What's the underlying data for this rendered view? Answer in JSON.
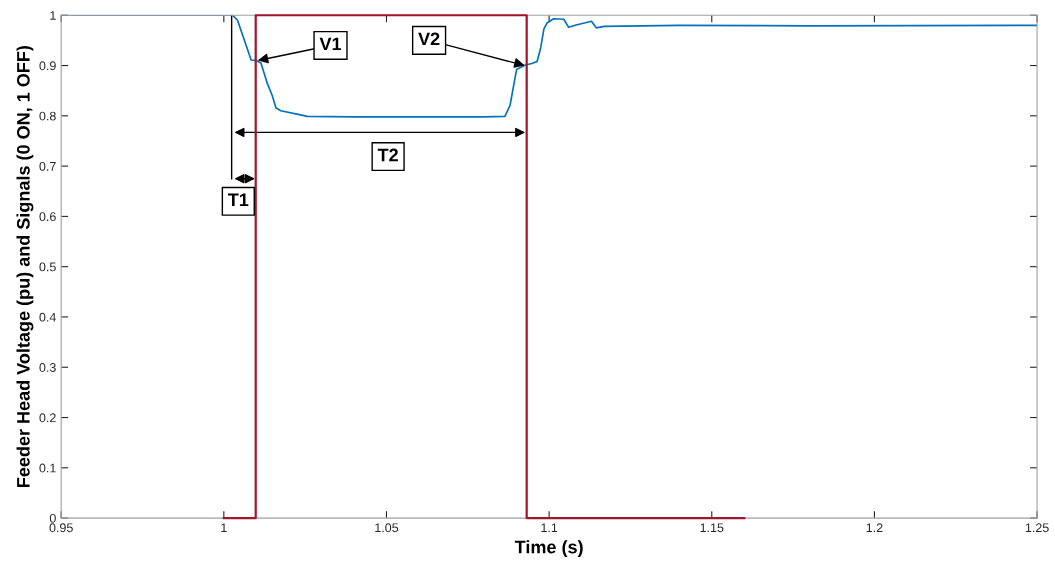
{
  "chart_data": {
    "type": "step",
    "xlabel": "Time (s)",
    "ylabel": "Feeder Head Voltage (pu) and Signals (0 ON, 1 OFF)",
    "xlim": [
      0.95,
      1.25
    ],
    "ylim": [
      0,
      1
    ],
    "xticks": [
      0.95,
      1,
      1.05,
      1.1,
      1.15,
      1.2,
      1.25
    ],
    "yticks": [
      0,
      0.1,
      0.2,
      0.3,
      0.4,
      0.5,
      0.6,
      0.7,
      0.8,
      0.9,
      1
    ],
    "grid": false,
    "series": [
      {
        "color": "#a2142f",
        "x": [
          1.0,
          1.0098,
          1.0931,
          1.16
        ],
        "values": [
          0,
          1,
          0,
          0
        ]
      },
      {
        "type": "line",
        "color": "#0072bd",
        "x": [
          0.95,
          1.0027,
          1.0042,
          1.0084,
          1.0099,
          1.0114,
          1.0134,
          1.0149,
          1.016,
          1.0175,
          1.0236,
          1.0256,
          1.04,
          1.06,
          1.08,
          1.0864,
          1.088,
          1.089,
          1.09,
          1.0927,
          1.0947,
          1.0963,
          1.0974,
          1.0984,
          1.0994,
          1.1014,
          1.1045,
          1.106,
          1.108,
          1.113,
          1.1145,
          1.117,
          1.14,
          1.18,
          1.25
        ],
        "values": [
          1.0,
          1.0,
          0.99,
          0.911,
          0.91,
          0.905,
          0.864,
          0.84,
          0.816,
          0.81,
          0.802,
          0.799,
          0.798,
          0.798,
          0.798,
          0.799,
          0.821,
          0.857,
          0.892,
          0.901,
          0.904,
          0.908,
          0.935,
          0.973,
          0.985,
          0.993,
          0.992,
          0.976,
          0.98,
          0.988,
          0.975,
          0.978,
          0.98,
          0.979,
          0.98
        ]
      }
    ],
    "annotations": [
      {
        "text": "V1",
        "x": 1.0104,
        "y": 0.91
      },
      {
        "text": "V2",
        "x": 1.0925,
        "y": 0.9
      },
      {
        "text": "T1",
        "x": 1.0024,
        "y": 1.0
      },
      "T2"
    ]
  }
}
